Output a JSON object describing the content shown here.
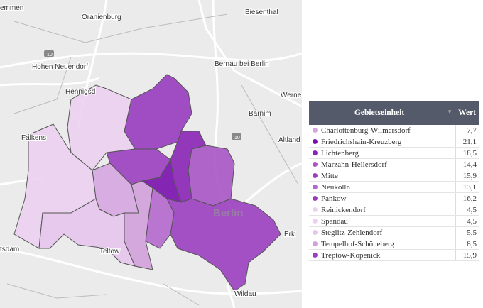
{
  "map": {
    "places": [
      "emmen",
      "Oranienburg",
      "Biesenthal",
      "Hohen Neuendorf",
      "Bernau bei Berlin",
      "Hennigsd",
      "Werne",
      "Barnim",
      "Falkens",
      "Altland",
      "Berlin",
      "Erk",
      "tsdam",
      "Teltow",
      "Wildau"
    ],
    "roads": [
      "10",
      "10"
    ]
  },
  "table": {
    "columns": [
      "Gebietseinheit",
      "Wert"
    ],
    "rows": [
      {
        "name": "Charlottenburg-Wilmersdorf",
        "value": "7,7",
        "color": "#d6a6e0"
      },
      {
        "name": "Friedrichshain-Kreuzberg",
        "value": "21,1",
        "color": "#7a0fae"
      },
      {
        "name": "Lichtenberg",
        "value": "18,5",
        "color": "#8a24b6"
      },
      {
        "name": "Marzahn-Hellersdorf",
        "value": "14,4",
        "color": "#a955c7"
      },
      {
        "name": "Mitte",
        "value": "15,9",
        "color": "#9b3fc0"
      },
      {
        "name": "Neukölln",
        "value": "13,1",
        "color": "#b468cc"
      },
      {
        "name": "Pankow",
        "value": "16,2",
        "color": "#983bbf"
      },
      {
        "name": "Reinickendorf",
        "value": "4,5",
        "color": "#ecd2f1"
      },
      {
        "name": "Spandau",
        "value": "4,5",
        "color": "#ecd2f1"
      },
      {
        "name": "Steglitz-Zehlendorf",
        "value": "5,5",
        "color": "#e6c5ec"
      },
      {
        "name": "Tempelhof-Schöneberg",
        "value": "8,5",
        "color": "#d2a0dc"
      },
      {
        "name": "Treptow-Köpenick",
        "value": "15,9",
        "color": "#9b3fc0"
      }
    ]
  }
}
